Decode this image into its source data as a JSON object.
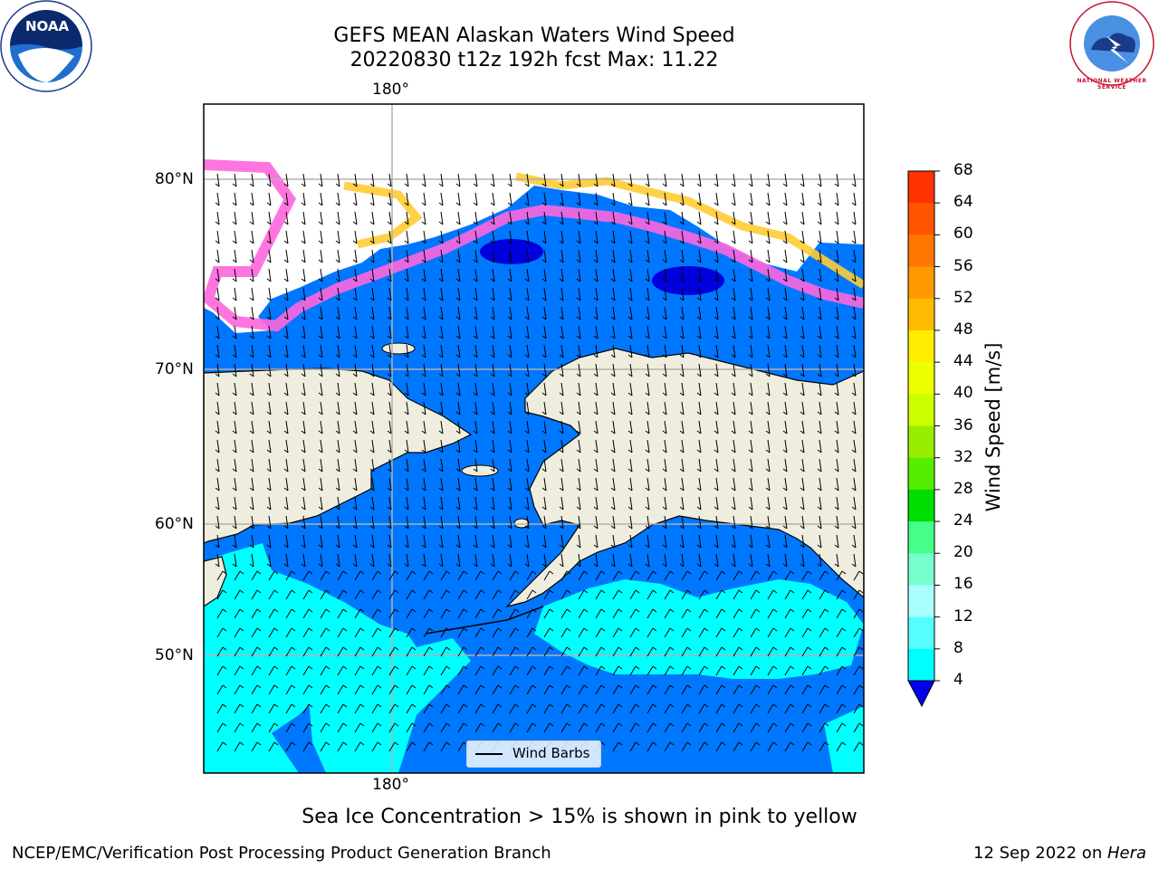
{
  "header": {
    "title_line1": "GEFS MEAN Alaskan Waters Wind Speed",
    "title_line2": "20220830 t12z 192h fcst   Max: 11.22"
  },
  "map": {
    "lon_label_top": "180°",
    "lon_label_bottom": "180°",
    "lat_labels": [
      "80°N",
      "70°N",
      "60°N",
      "50°N"
    ],
    "colors": {
      "land": "#efeede",
      "water_4_8": "#0077ff",
      "water_8_12": "#00ffff",
      "below_min": "#0000dd",
      "ice_pink": "#ff66dd",
      "ice_yellow": "#ffcc33",
      "grid": "#b0b0b0"
    },
    "legend_label": "Wind Barbs"
  },
  "colorbar": {
    "title": "Wind Speed [m/s]",
    "ticks": [
      "68",
      "64",
      "60",
      "56",
      "52",
      "48",
      "44",
      "40",
      "36",
      "32",
      "28",
      "24",
      "20",
      "16",
      "12",
      "8",
      "4"
    ],
    "colors": [
      "#ff0000",
      "#ff3300",
      "#ff5500",
      "#ff7700",
      "#ff9900",
      "#ffbb00",
      "#ffee00",
      "#eeff00",
      "#ccff00",
      "#99ee00",
      "#55ee00",
      "#00dd00",
      "#44ff88",
      "#77ffcc",
      "#aaffff",
      "#55ffff",
      "#00ffff",
      "#0077ff"
    ],
    "extend_color": "#0000ee"
  },
  "notes": {
    "sea_ice": "Sea Ice Concentration > 15% is shown in pink to yellow"
  },
  "footer": {
    "left": "NCEP/EMC/Verification Post Processing Product Generation Branch",
    "right_date": "12 Sep 2022 on ",
    "right_machine": "Hera"
  },
  "logos": {
    "noaa": "NOAA",
    "nws": "NATIONAL WEATHER SERVICE"
  }
}
